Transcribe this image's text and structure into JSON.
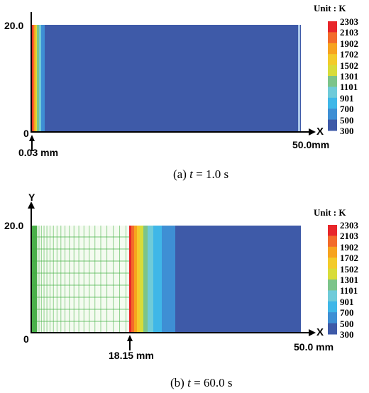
{
  "panel_a": {
    "y_tick_label": "20.0",
    "origin_label": "0",
    "x_axis_label": "X",
    "x_end_label": "50.0mm",
    "marker_label": "0.03 mm",
    "caption_prefix": "(a) ",
    "caption_var": "t",
    "caption_suffix": " = 1.0 s",
    "unit_label": "Unit : K"
  },
  "panel_b": {
    "y_axis_label": "Y",
    "y_tick_label": "20.0",
    "origin_label": "0",
    "x_axis_label": "X",
    "x_end_label": "50.0 mm",
    "marker_label": "18.15 mm",
    "caption_prefix": "(b) ",
    "caption_var": "t",
    "caption_suffix": " = 60.0 s",
    "unit_label": "Unit : K"
  },
  "legend": {
    "levels": [
      "2303",
      "2103",
      "1902",
      "1702",
      "1502",
      "1301",
      "1101",
      "901",
      "700",
      "500",
      "300"
    ],
    "colors": [
      "#e8262a",
      "#f36b2a",
      "#f7a31f",
      "#f3cb2a",
      "#d8dc3a",
      "#7cc48a",
      "#6fcbd9",
      "#3fb7e8",
      "#3e8fd4",
      "#3e5aa8"
    ]
  },
  "colors": {
    "domain_blue": "#3e5aa8",
    "mesh_green": "#3fae3f"
  }
}
